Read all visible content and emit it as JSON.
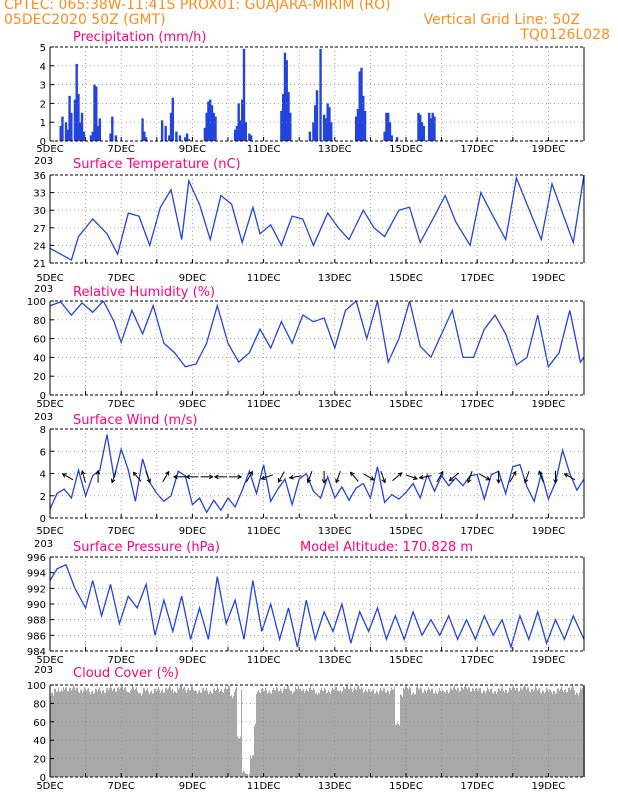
{
  "header": {
    "line1": "CPTEC:   065:38W-11:41S   PROX01: GUAJARA-MIRIM (RO)",
    "line2_left": "05DEC2020 50Z (GMT)",
    "line2_right": "Vertical Grid Line: 50Z",
    "code": "TQ0126L028"
  },
  "colors": {
    "header": "#ff8c1a",
    "title": "#ff0080",
    "series": "#2244dd",
    "cloud": "#a8a8a8",
    "wind_arrow": "#000000"
  },
  "x_tick_labels": [
    "5DEC",
    "7DEC",
    "9DEC",
    "11DEC",
    "13DEC",
    "15DEC",
    "17DEC",
    "19DEC"
  ],
  "stub_label": "203",
  "chart_data": [
    {
      "type": "bar",
      "title": "Precipitation (mm/h)",
      "ylim": [
        0,
        5
      ],
      "y_ticks": [
        0,
        1,
        2,
        3,
        4,
        5
      ],
      "x_days": [
        5,
        20
      ],
      "x": [
        5.3,
        5.35,
        5.45,
        5.5,
        5.55,
        5.6,
        5.7,
        5.75,
        5.8,
        5.85,
        5.9,
        5.95,
        6.15,
        6.2,
        6.25,
        6.3,
        6.35,
        6.4,
        6.7,
        6.75,
        6.85,
        7.6,
        7.65,
        7.7,
        8.15,
        8.25,
        8.35,
        8.4,
        8.45,
        8.55,
        8.65,
        8.8,
        8.85,
        8.9,
        9.35,
        9.4,
        9.45,
        9.5,
        9.55,
        9.6,
        9.65,
        10.2,
        10.25,
        10.3,
        10.35,
        10.4,
        10.45,
        10.5,
        10.6,
        10.65,
        11.5,
        11.55,
        11.6,
        11.65,
        11.7,
        11.75,
        12.3,
        12.4,
        12.45,
        12.5,
        12.6,
        12.7,
        12.75,
        12.8,
        12.85,
        12.9,
        13.6,
        13.65,
        13.7,
        13.75,
        13.8,
        13.85,
        14.4,
        14.45,
        14.5,
        14.55,
        14.6,
        14.75,
        15.35,
        15.4,
        15.45,
        15.5,
        15.65,
        15.7,
        15.75,
        15.8,
        16.0,
        16.5,
        17.0,
        17.5,
        18.0,
        18.5,
        19.0,
        19.5,
        19.8
      ],
      "values": [
        0.8,
        1.3,
        1.0,
        0.6,
        2.4,
        1.5,
        2.2,
        4.1,
        2.5,
        1.0,
        1.5,
        0.5,
        0.3,
        0.5,
        3.0,
        2.9,
        0.8,
        1.2,
        0.4,
        1.3,
        0.3,
        1.2,
        0.5,
        0.2,
        1.1,
        0.8,
        0.3,
        1.5,
        2.3,
        0.5,
        0.3,
        0.2,
        0.4,
        0.1,
        0.7,
        1.5,
        2.1,
        2.2,
        1.9,
        1.5,
        1.3,
        0.6,
        0.8,
        2.0,
        1.1,
        2.2,
        4.9,
        1.0,
        0.4,
        0.3,
        1.6,
        2.5,
        4.7,
        4.3,
        2.6,
        1.5,
        0.5,
        1.0,
        1.9,
        2.7,
        4.9,
        1.4,
        1.2,
        2.0,
        1.8,
        1.0,
        1.3,
        1.7,
        3.7,
        3.9,
        2.4,
        1.6,
        0.5,
        1.5,
        1.5,
        1.0,
        0.3,
        0.2,
        1.5,
        1.4,
        1.0,
        0.8,
        1.5,
        1.2,
        1.5,
        1.3,
        0.05,
        0.05,
        0.05,
        0.05,
        0.05,
        0.05,
        0.05,
        0.05,
        0.05
      ]
    },
    {
      "type": "line",
      "title": "Surface Temperature (nC)",
      "ylim": [
        21,
        36
      ],
      "y_ticks": [
        21,
        24,
        27,
        30,
        33,
        36
      ],
      "x_days": [
        5,
        20
      ],
      "x": [
        5.0,
        5.3,
        5.6,
        5.8,
        6.2,
        6.6,
        6.9,
        7.2,
        7.5,
        7.8,
        8.1,
        8.4,
        8.7,
        8.9,
        9.2,
        9.5,
        9.8,
        10.1,
        10.4,
        10.7,
        10.9,
        11.2,
        11.5,
        11.8,
        12.1,
        12.4,
        12.8,
        13.1,
        13.4,
        13.8,
        14.1,
        14.4,
        14.8,
        15.1,
        15.4,
        15.8,
        16.1,
        16.4,
        16.8,
        17.1,
        17.4,
        17.8,
        18.1,
        18.4,
        18.8,
        19.1,
        19.4,
        19.7,
        20.0
      ],
      "values": [
        23.5,
        22.5,
        21.5,
        25.5,
        28.5,
        26.0,
        22.5,
        29.5,
        29.0,
        24.0,
        30.5,
        33.5,
        25.0,
        35.0,
        31.0,
        25.0,
        32.5,
        31.0,
        24.5,
        30.5,
        26.0,
        27.5,
        24.0,
        29.0,
        28.5,
        24.0,
        29.5,
        27.0,
        25.0,
        30.0,
        27.0,
        25.5,
        30.0,
        30.5,
        24.5,
        29.0,
        32.5,
        28.0,
        24.0,
        33.0,
        29.5,
        25.0,
        35.5,
        31.0,
        25.0,
        34.5,
        29.5,
        24.5,
        36.0
      ]
    },
    {
      "type": "line",
      "title": "Relative Humidity (%)",
      "ylim": [
        0,
        100
      ],
      "y_ticks": [
        0,
        20,
        40,
        60,
        80,
        100
      ],
      "x_days": [
        5,
        20
      ],
      "x": [
        5.0,
        5.3,
        5.6,
        5.9,
        6.2,
        6.5,
        6.8,
        7.0,
        7.3,
        7.6,
        7.9,
        8.2,
        8.5,
        8.8,
        9.1,
        9.4,
        9.7,
        10.0,
        10.3,
        10.6,
        10.9,
        11.2,
        11.5,
        11.8,
        12.1,
        12.4,
        12.7,
        13.0,
        13.3,
        13.6,
        13.9,
        14.2,
        14.5,
        14.8,
        15.1,
        15.4,
        15.7,
        16.0,
        16.3,
        16.6,
        16.9,
        17.2,
        17.5,
        17.8,
        18.1,
        18.4,
        18.7,
        19.0,
        19.3,
        19.6,
        19.9,
        20.0
      ],
      "values": [
        95,
        99,
        85,
        98,
        88,
        100,
        78,
        56,
        90,
        65,
        95,
        55,
        45,
        30,
        33,
        55,
        95,
        55,
        35,
        45,
        70,
        50,
        78,
        55,
        85,
        78,
        82,
        50,
        90,
        100,
        60,
        100,
        35,
        60,
        100,
        52,
        40,
        65,
        90,
        40,
        40,
        70,
        85,
        65,
        32,
        40,
        85,
        30,
        45,
        90,
        35,
        40
      ]
    },
    {
      "type": "line",
      "title": "Surface Wind (m/s)",
      "ylim": [
        0,
        8
      ],
      "y_ticks": [
        0,
        2,
        4,
        6,
        8
      ],
      "x_days": [
        5,
        20
      ],
      "x": [
        5.0,
        5.2,
        5.4,
        5.6,
        5.8,
        6.0,
        6.2,
        6.4,
        6.6,
        6.8,
        7.0,
        7.2,
        7.4,
        7.6,
        7.8,
        8.0,
        8.2,
        8.4,
        8.6,
        8.8,
        9.0,
        9.2,
        9.4,
        9.6,
        9.8,
        10.0,
        10.2,
        10.4,
        10.6,
        10.8,
        11.0,
        11.2,
        11.4,
        11.6,
        11.8,
        12.0,
        12.2,
        12.4,
        12.6,
        12.8,
        13.0,
        13.2,
        13.4,
        13.6,
        13.8,
        14.0,
        14.2,
        14.4,
        14.6,
        14.8,
        15.0,
        15.2,
        15.4,
        15.6,
        15.8,
        16.0,
        16.2,
        16.4,
        16.6,
        16.8,
        17.0,
        17.2,
        17.4,
        17.6,
        17.8,
        18.0,
        18.2,
        18.4,
        18.6,
        18.8,
        19.0,
        19.2,
        19.4,
        19.6,
        19.8,
        20.0
      ],
      "values": [
        0.8,
        2.2,
        2.6,
        1.8,
        4.3,
        2.0,
        3.8,
        4.3,
        7.5,
        3.6,
        6.2,
        4.3,
        1.5,
        5.3,
        3.2,
        2.2,
        1.5,
        2.0,
        4.2,
        3.8,
        1.2,
        1.8,
        0.5,
        1.6,
        0.7,
        1.8,
        1.0,
        2.5,
        4.2,
        2.2,
        4.8,
        1.5,
        2.6,
        3.5,
        1.2,
        3.5,
        4.0,
        2.4,
        1.8,
        3.7,
        1.8,
        2.8,
        1.6,
        2.7,
        3.1,
        1.8,
        4.6,
        1.4,
        2.1,
        1.7,
        2.3,
        3.1,
        1.8,
        3.9,
        2.4,
        3.8,
        2.9,
        3.6,
        2.9,
        3.8,
        3.9,
        1.7,
        3.9,
        4.2,
        2.2,
        4.6,
        4.8,
        2.8,
        1.5,
        4.0,
        1.7,
        3.2,
        6.1,
        4.0,
        2.5,
        3.5
      ]
    },
    {
      "type": "line",
      "title": "Surface Pressure (hPa)",
      "annotation": "Model Altitude: 170.828 m",
      "ylim": [
        984,
        996
      ],
      "y_ticks": [
        984,
        986,
        988,
        990,
        992,
        994,
        996
      ],
      "x_days": [
        5,
        20
      ],
      "x": [
        5.0,
        5.2,
        5.45,
        5.7,
        6.0,
        6.2,
        6.45,
        6.7,
        6.95,
        7.2,
        7.45,
        7.7,
        7.95,
        8.2,
        8.45,
        8.7,
        8.95,
        9.2,
        9.45,
        9.7,
        9.95,
        10.2,
        10.45,
        10.7,
        10.95,
        11.2,
        11.45,
        11.7,
        11.95,
        12.2,
        12.45,
        12.7,
        12.95,
        13.2,
        13.45,
        13.7,
        13.95,
        14.2,
        14.45,
        14.7,
        14.95,
        15.2,
        15.45,
        15.7,
        15.95,
        16.2,
        16.45,
        16.7,
        16.95,
        17.2,
        17.45,
        17.7,
        17.95,
        18.2,
        18.45,
        18.7,
        18.95,
        19.2,
        19.45,
        19.7,
        20.0
      ],
      "values": [
        993.0,
        994.5,
        995.0,
        992.0,
        989.5,
        993.0,
        988.5,
        992.5,
        987.5,
        991.0,
        989.5,
        992.5,
        986.0,
        990.5,
        986.5,
        991.0,
        985.5,
        989.5,
        985.5,
        993.5,
        987.5,
        990.5,
        985.5,
        993.0,
        986.5,
        990.0,
        985.5,
        989.5,
        984.5,
        990.5,
        985.5,
        989.0,
        986.5,
        990.0,
        985.0,
        989.0,
        986.5,
        989.5,
        985.5,
        988.5,
        985.5,
        989.0,
        986.0,
        988.0,
        986.0,
        988.5,
        985.5,
        988.0,
        985.5,
        988.5,
        986.0,
        988.0,
        984.5,
        988.5,
        985.5,
        989.0,
        985.0,
        988.0,
        985.5,
        988.5,
        985.5
      ]
    },
    {
      "type": "area",
      "title": "Cloud Cover (%)",
      "ylim": [
        0,
        100
      ],
      "y_ticks": [
        0,
        20,
        40,
        60,
        80,
        100
      ],
      "x_days": [
        5,
        20
      ],
      "base_level": 95,
      "dips": [
        {
          "day": 5.05,
          "value": 88
        },
        {
          "day": 5.3,
          "value": 91
        },
        {
          "day": 6.2,
          "value": 92
        },
        {
          "day": 7.2,
          "value": 90
        },
        {
          "day": 7.55,
          "value": 88
        },
        {
          "day": 8.5,
          "value": 90
        },
        {
          "day": 9.1,
          "value": 92
        },
        {
          "day": 10.1,
          "value": 85
        },
        {
          "day": 10.3,
          "value": 40
        },
        {
          "day": 10.45,
          "value": 3
        },
        {
          "day": 10.55,
          "value": 0
        },
        {
          "day": 10.65,
          "value": 20
        },
        {
          "day": 10.7,
          "value": 55
        },
        {
          "day": 11.8,
          "value": 90
        },
        {
          "day": 12.05,
          "value": 92
        },
        {
          "day": 12.5,
          "value": 89
        },
        {
          "day": 13.15,
          "value": 93
        },
        {
          "day": 14.0,
          "value": 91
        },
        {
          "day": 14.75,
          "value": 55
        },
        {
          "day": 14.85,
          "value": 86
        },
        {
          "day": 15.2,
          "value": 88
        },
        {
          "day": 15.8,
          "value": 90
        },
        {
          "day": 16.0,
          "value": 92
        },
        {
          "day": 17.0,
          "value": 93
        },
        {
          "day": 18.2,
          "value": 95
        },
        {
          "day": 19.0,
          "value": 93
        },
        {
          "day": 19.8,
          "value": 88
        }
      ]
    }
  ],
  "wind_arrows": [
    {
      "day": 5.5,
      "dir": 300
    },
    {
      "day": 5.95,
      "dir": 345
    },
    {
      "day": 6.35,
      "dir": 0
    },
    {
      "day": 6.8,
      "dir": 200
    },
    {
      "day": 7.45,
      "dir": 320
    },
    {
      "day": 7.75,
      "dir": 160
    },
    {
      "day": 8.25,
      "dir": 30
    },
    {
      "day": 8.65,
      "dir": 270
    },
    {
      "day": 9.0,
      "dir": 270
    },
    {
      "day": 9.4,
      "dir": 90
    },
    {
      "day": 9.8,
      "dir": 270
    },
    {
      "day": 10.2,
      "dir": 90
    },
    {
      "day": 10.6,
      "dir": 30
    },
    {
      "day": 11.1,
      "dir": 250
    },
    {
      "day": 11.5,
      "dir": 210
    },
    {
      "day": 11.9,
      "dir": 260
    },
    {
      "day": 12.3,
      "dir": 200
    },
    {
      "day": 12.7,
      "dir": 180
    },
    {
      "day": 13.1,
      "dir": 200
    },
    {
      "day": 13.55,
      "dir": 320
    },
    {
      "day": 13.95,
      "dir": 120
    },
    {
      "day": 14.35,
      "dir": 160
    },
    {
      "day": 14.75,
      "dir": 50
    },
    {
      "day": 15.15,
      "dir": 110
    },
    {
      "day": 15.55,
      "dir": 260
    },
    {
      "day": 15.95,
      "dir": 30
    },
    {
      "day": 16.35,
      "dir": 230
    },
    {
      "day": 16.8,
      "dir": 200
    },
    {
      "day": 17.2,
      "dir": 120
    },
    {
      "day": 17.6,
      "dir": 180
    },
    {
      "day": 18.0,
      "dir": 30
    },
    {
      "day": 18.4,
      "dir": 200
    },
    {
      "day": 18.8,
      "dir": 340
    },
    {
      "day": 19.2,
      "dir": 180
    },
    {
      "day": 19.6,
      "dir": 300
    }
  ]
}
